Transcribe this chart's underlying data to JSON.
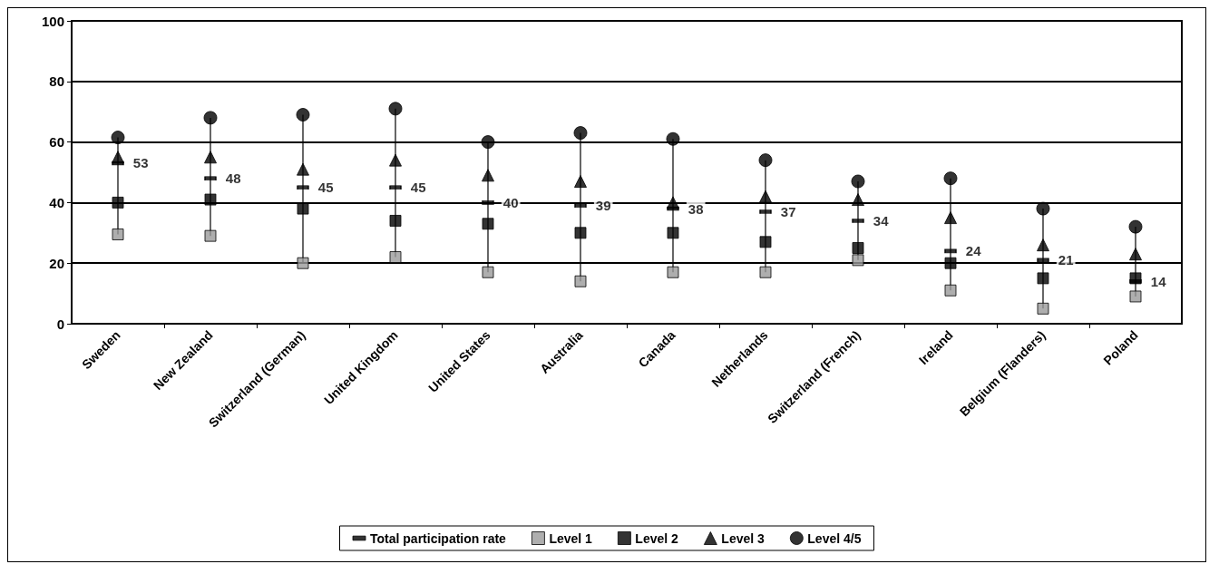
{
  "chart_data": {
    "type": "scatter",
    "categories": [
      "Sweden",
      "New Zealand",
      "Switzerland (German)",
      "United Kingdom",
      "United States",
      "Australia",
      "Canada",
      "Netherlands",
      "Switzerland (French)",
      "Ireland",
      "Belgium (Flanders)",
      "Poland"
    ],
    "ylim": [
      0,
      100
    ],
    "yticks": [
      0,
      20,
      40,
      60,
      80,
      100
    ],
    "grid": "y",
    "legend": "bottom",
    "series": [
      {
        "name": "Total participation rate",
        "color": "#000000",
        "values": [
          53,
          48,
          45,
          45,
          40,
          39,
          38,
          37,
          34,
          24,
          21,
          14
        ],
        "value_labels": [
          "53",
          "48",
          "45",
          "45",
          "40",
          "39",
          "38",
          "37",
          "34",
          "24",
          "21",
          "14"
        ]
      },
      {
        "name": "Level 1",
        "color": "#9a9a9a",
        "marker": "square",
        "values": [
          29.5,
          29,
          20,
          22,
          17,
          14,
          17,
          17,
          21,
          11,
          5,
          9
        ]
      },
      {
        "name": "Level 2",
        "color": "#000000",
        "marker": "square",
        "values": [
          40,
          41,
          38,
          34,
          33,
          30,
          30,
          27,
          25,
          20,
          15,
          15
        ]
      },
      {
        "name": "Level 3",
        "color": "#000000",
        "marker": "triangle",
        "values": [
          55,
          55,
          51,
          54,
          49,
          47,
          40,
          42,
          41,
          35,
          26,
          23
        ]
      },
      {
        "name": "Level 4/5",
        "color": "#000000",
        "marker": "circle",
        "values": [
          61.5,
          68,
          69,
          71,
          60,
          63,
          61,
          54,
          47,
          48,
          38,
          32
        ]
      }
    ]
  }
}
